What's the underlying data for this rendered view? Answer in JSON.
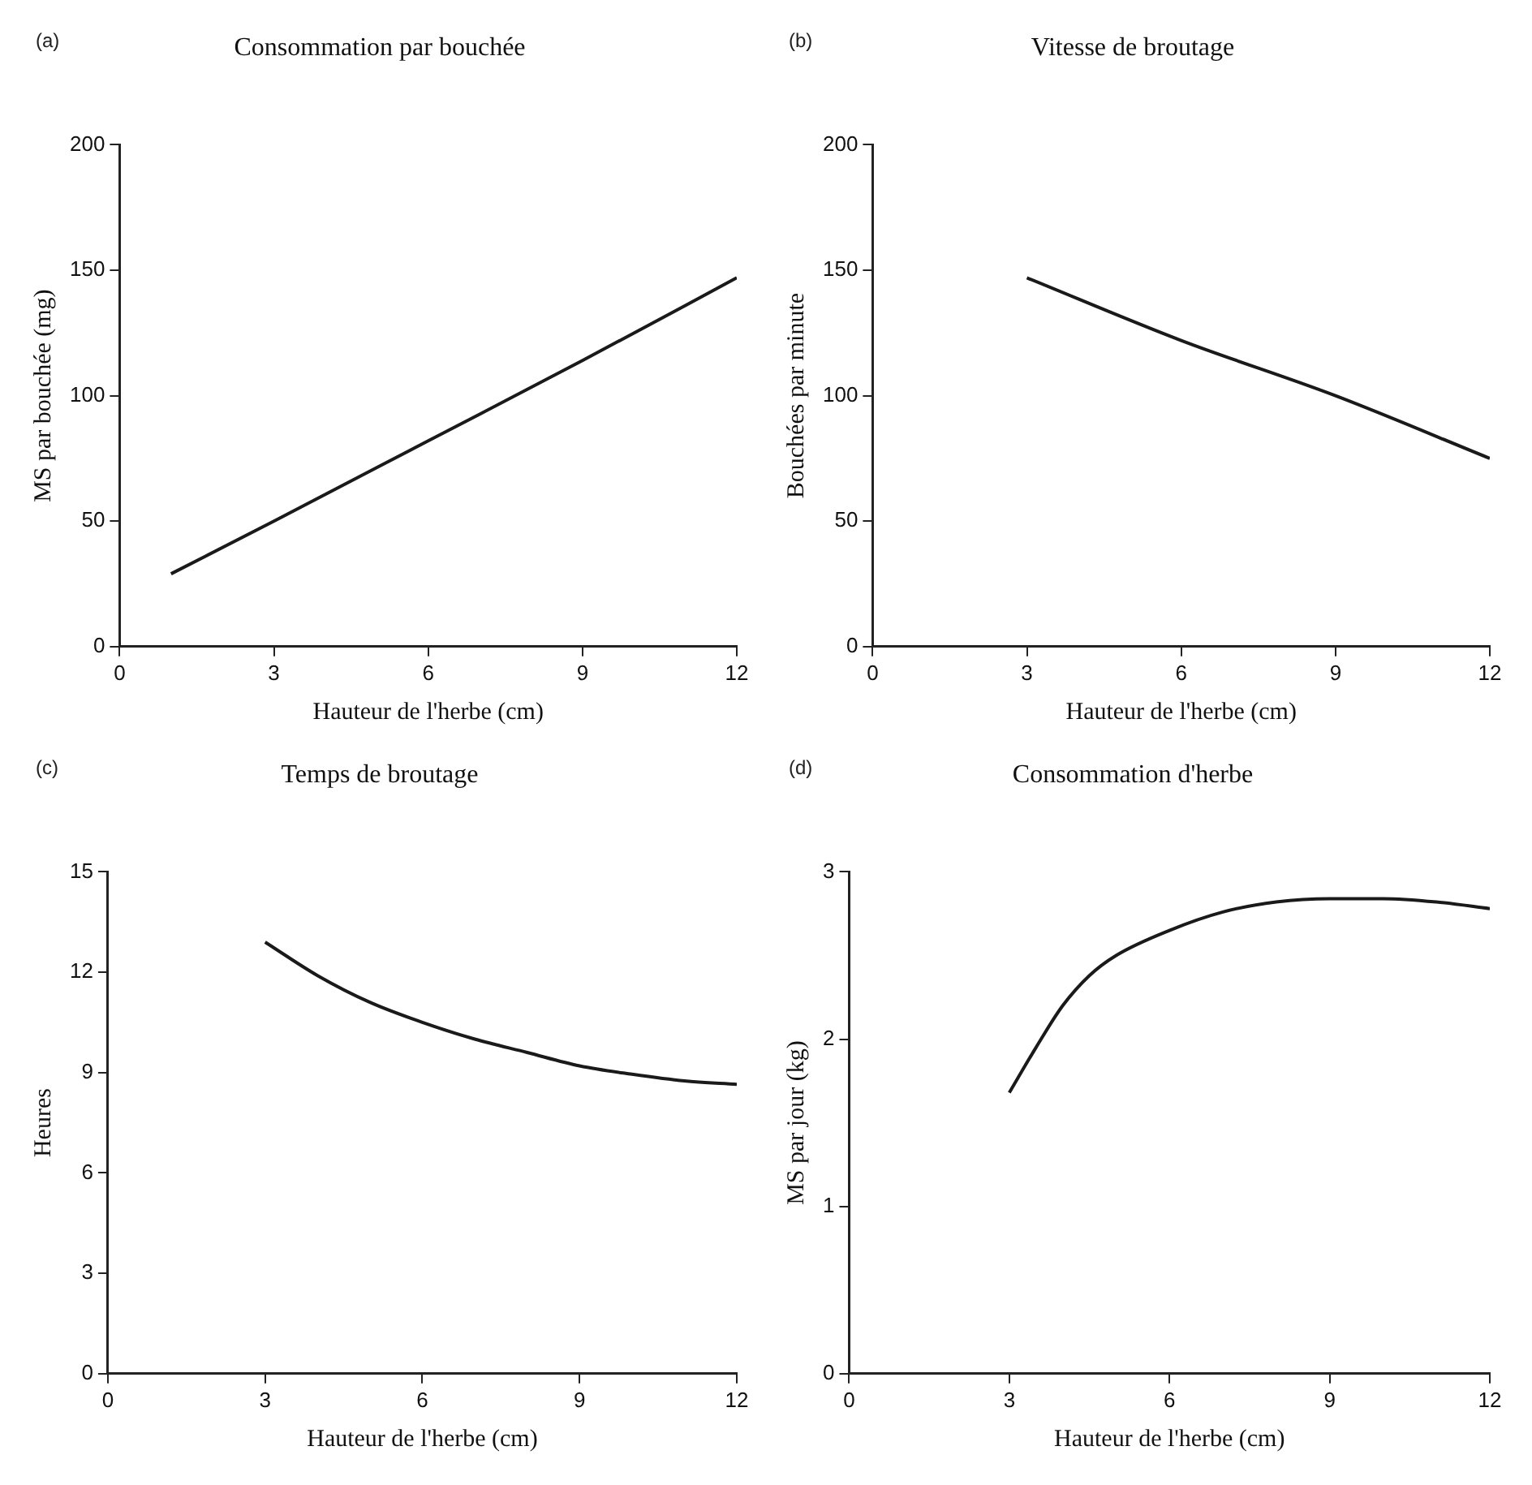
{
  "chart_data": [
    {
      "type": "line",
      "title": "Consommation par bouchée",
      "annotations": [
        "(a)"
      ],
      "xlabel": "Hauteur de l'herbe (cm)",
      "ylabel": "MS par bouchée (mg)",
      "xlim": [
        0,
        12
      ],
      "xticks": [
        0,
        3,
        6,
        9,
        12
      ],
      "ylim": [
        0,
        200
      ],
      "yticks": [
        0,
        50,
        100,
        150,
        200
      ],
      "grid": false,
      "legend": false,
      "marker": "none",
      "line_style": "solid",
      "series": [
        {
          "color": "#1a1a1a",
          "x": [
            1,
            3,
            6,
            9,
            12
          ],
          "values": [
            29,
            50,
            82,
            114,
            147
          ]
        }
      ]
    },
    {
      "type": "line",
      "title": "Vitesse de broutage",
      "annotations": [
        "(b)"
      ],
      "xlabel": "Hauteur de l'herbe (cm)",
      "ylabel": "Bouchées par minute",
      "xlim": [
        0,
        12
      ],
      "xticks": [
        0,
        3,
        6,
        9,
        12
      ],
      "ylim": [
        0,
        200
      ],
      "yticks": [
        0,
        50,
        100,
        150,
        200
      ],
      "grid": false,
      "legend": false,
      "marker": "none",
      "line_style": "solid",
      "series": [
        {
          "color": "#1a1a1a",
          "x": [
            3,
            6,
            9,
            12
          ],
          "values": [
            147,
            122,
            100,
            75
          ]
        }
      ]
    },
    {
      "type": "line",
      "title": "Temps de broutage",
      "annotations": [
        "(c)"
      ],
      "xlabel": "Hauteur de l'herbe (cm)",
      "ylabel": "Heures",
      "xlim": [
        0,
        12
      ],
      "xticks": [
        0,
        3,
        6,
        9,
        12
      ],
      "ylim": [
        0,
        15
      ],
      "yticks": [
        0,
        3,
        6,
        9,
        12,
        15
      ],
      "grid": false,
      "legend": false,
      "marker": "none",
      "line_style": "solid",
      "series": [
        {
          "color": "#1a1a1a",
          "x": [
            3,
            4,
            5,
            6,
            7,
            8,
            9,
            10,
            11,
            12
          ],
          "values": [
            12.9,
            11.9,
            11.1,
            10.5,
            10.0,
            9.6,
            9.2,
            8.95,
            8.75,
            8.65
          ]
        }
      ]
    },
    {
      "type": "line",
      "title": "Consommation d'herbe",
      "annotations": [
        "(d)"
      ],
      "xlabel": "Hauteur de l'herbe (cm)",
      "ylabel": "MS par jour (kg)",
      "xlim": [
        0,
        12
      ],
      "xticks": [
        0,
        3,
        6,
        9,
        12
      ],
      "ylim": [
        0,
        3
      ],
      "yticks": [
        0,
        1,
        2,
        3
      ],
      "grid": false,
      "legend": false,
      "marker": "none",
      "line_style": "solid",
      "series": [
        {
          "color": "#1a1a1a",
          "x": [
            3,
            3.5,
            4,
            4.5,
            5,
            6,
            7,
            8,
            9,
            10,
            11,
            12
          ],
          "values": [
            1.68,
            1.95,
            2.2,
            2.38,
            2.5,
            2.65,
            2.76,
            2.82,
            2.84,
            2.84,
            2.82,
            2.78
          ]
        }
      ]
    }
  ]
}
